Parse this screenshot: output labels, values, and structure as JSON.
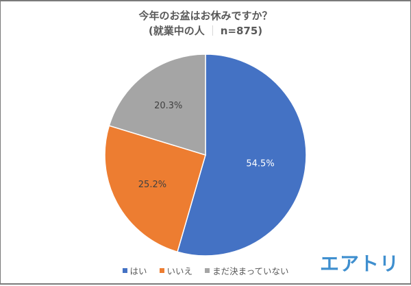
{
  "title": {
    "line1": "今年のお盆はお休みですか？",
    "line2_prefix": "(就業中の人",
    "line2_sep": "｜",
    "line2_suffix": "n=875)"
  },
  "chart_data": {
    "type": "pie",
    "title": "今年のお盆はお休みですか？ (就業中の人｜n=875)",
    "categories": [
      "はい",
      "いいえ",
      "まだ決まっていない"
    ],
    "values": [
      54.5,
      25.2,
      20.3
    ],
    "unit": "%",
    "labels": [
      "54.5%",
      "25.2%",
      "20.3%"
    ],
    "colors": [
      "#4472c4",
      "#ed7d31",
      "#a5a5a5"
    ],
    "start_angle": "12 o'clock, clockwise",
    "legend_position": "bottom"
  },
  "legend": {
    "items": [
      {
        "label": "はい",
        "color": "#4472c4"
      },
      {
        "label": "いいえ",
        "color": "#ed7d31"
      },
      {
        "label": "まだ決まっていない",
        "color": "#a5a5a5"
      }
    ]
  },
  "brand": {
    "logo_text": "エアトリ",
    "color": "#3f8fcf"
  }
}
